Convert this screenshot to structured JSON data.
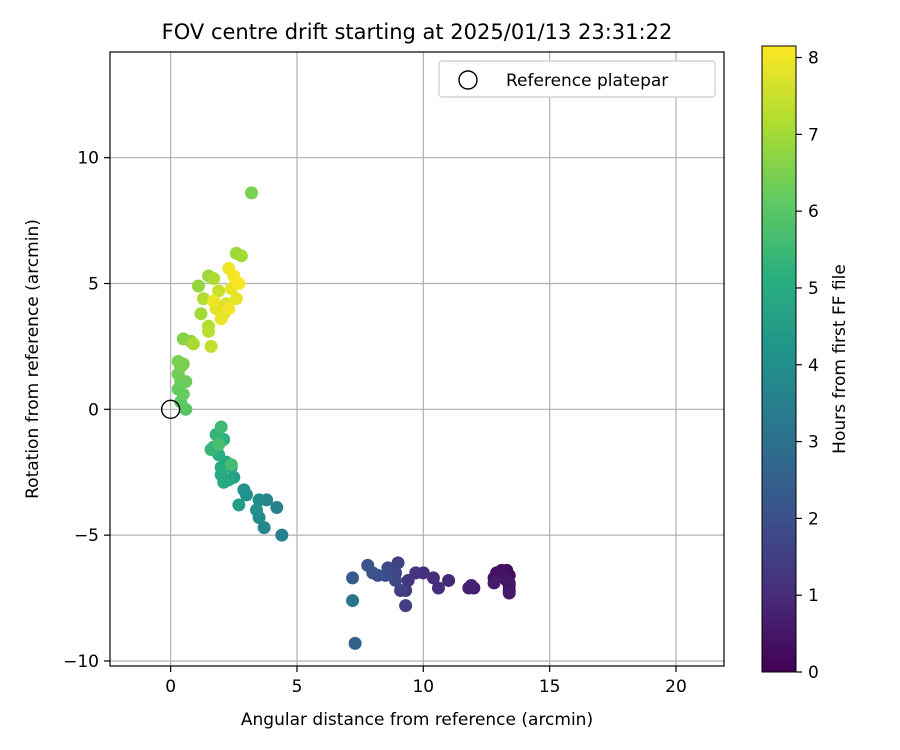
{
  "chart_data": {
    "type": "scatter",
    "title": "FOV centre drift starting at 2025/01/13 23:31:22",
    "xlabel": "Angular distance from reference (arcmin)",
    "ylabel": "Rotation from reference (arcmin)",
    "xlim": [
      -2.4,
      21.9
    ],
    "ylim": [
      -10.2,
      14.2
    ],
    "xticks": [
      0,
      5,
      10,
      15,
      20
    ],
    "yticks": [
      -10,
      -5,
      0,
      5,
      10
    ],
    "grid": true,
    "legend": {
      "position": "top-right",
      "entries": [
        "Reference platepar"
      ]
    },
    "reference_point": {
      "name": "Reference platepar",
      "x": 0,
      "y": 0,
      "marker": "open-circle"
    },
    "colorbar": {
      "label": "Hours from first FF file",
      "colormap": "viridis",
      "range": [
        0,
        8.15
      ],
      "ticks": [
        0,
        1,
        2,
        3,
        4,
        5,
        6,
        7,
        8
      ]
    },
    "points": [
      {
        "x": 13.4,
        "y": -7.2,
        "t": 0.05
      },
      {
        "x": 13.4,
        "y": -7.0,
        "t": 0.1
      },
      {
        "x": 13.3,
        "y": -6.8,
        "t": 0.15
      },
      {
        "x": 13.4,
        "y": -6.6,
        "t": 0.2
      },
      {
        "x": 13.3,
        "y": -6.4,
        "t": 0.25
      },
      {
        "x": 13.1,
        "y": -6.4,
        "t": 0.3
      },
      {
        "x": 12.8,
        "y": -6.7,
        "t": 0.35
      },
      {
        "x": 12.9,
        "y": -6.5,
        "t": 0.4
      },
      {
        "x": 13.2,
        "y": -6.6,
        "t": 0.45
      },
      {
        "x": 13.4,
        "y": -6.9,
        "t": 0.5
      },
      {
        "x": 13.4,
        "y": -7.3,
        "t": 0.55
      },
      {
        "x": 12.8,
        "y": -6.9,
        "t": 0.6
      },
      {
        "x": 12.0,
        "y": -7.1,
        "t": 0.65
      },
      {
        "x": 11.8,
        "y": -7.1,
        "t": 0.75
      },
      {
        "x": 11.9,
        "y": -7.0,
        "t": 0.8
      },
      {
        "x": 11.0,
        "y": -6.8,
        "t": 0.9
      },
      {
        "x": 10.6,
        "y": -7.1,
        "t": 1.0
      },
      {
        "x": 10.4,
        "y": -6.7,
        "t": 1.05
      },
      {
        "x": 10.0,
        "y": -6.5,
        "t": 1.1
      },
      {
        "x": 9.7,
        "y": -6.5,
        "t": 1.2
      },
      {
        "x": 9.4,
        "y": -6.8,
        "t": 1.3
      },
      {
        "x": 9.3,
        "y": -7.2,
        "t": 1.4
      },
      {
        "x": 9.3,
        "y": -7.8,
        "t": 1.5
      },
      {
        "x": 9.1,
        "y": -7.2,
        "t": 1.55
      },
      {
        "x": 9.0,
        "y": -6.1,
        "t": 1.6
      },
      {
        "x": 8.9,
        "y": -6.5,
        "t": 1.7
      },
      {
        "x": 8.9,
        "y": -6.8,
        "t": 1.75
      },
      {
        "x": 8.6,
        "y": -6.3,
        "t": 1.8
      },
      {
        "x": 8.5,
        "y": -6.6,
        "t": 1.9
      },
      {
        "x": 8.2,
        "y": -6.6,
        "t": 2.0
      },
      {
        "x": 8.0,
        "y": -6.5,
        "t": 2.05
      },
      {
        "x": 7.8,
        "y": -6.2,
        "t": 2.1
      },
      {
        "x": 7.2,
        "y": -6.7,
        "t": 2.3
      },
      {
        "x": 7.2,
        "y": -7.6,
        "t": 3.2
      },
      {
        "x": 7.3,
        "y": -9.3,
        "t": 2.5
      },
      {
        "x": 4.4,
        "y": -5.0,
        "t": 3.5
      },
      {
        "x": 4.2,
        "y": -3.9,
        "t": 3.6
      },
      {
        "x": 3.8,
        "y": -3.6,
        "t": 3.7
      },
      {
        "x": 3.7,
        "y": -4.7,
        "t": 3.75
      },
      {
        "x": 3.5,
        "y": -4.3,
        "t": 3.8
      },
      {
        "x": 3.5,
        "y": -3.6,
        "t": 3.9
      },
      {
        "x": 3.4,
        "y": -4.0,
        "t": 4.0
      },
      {
        "x": 3.0,
        "y": -3.4,
        "t": 4.05
      },
      {
        "x": 2.9,
        "y": -3.2,
        "t": 4.1
      },
      {
        "x": 2.7,
        "y": -3.8,
        "t": 4.5
      },
      {
        "x": 2.5,
        "y": -2.7,
        "t": 4.6
      },
      {
        "x": 2.4,
        "y": -2.3,
        "t": 4.7
      },
      {
        "x": 2.3,
        "y": -2.8,
        "t": 4.8
      },
      {
        "x": 2.2,
        "y": -2.1,
        "t": 4.85
      },
      {
        "x": 2.0,
        "y": -2.6,
        "t": 4.9
      },
      {
        "x": 2.1,
        "y": -2.9,
        "t": 4.95
      },
      {
        "x": 2.0,
        "y": -2.3,
        "t": 5.0
      },
      {
        "x": 1.9,
        "y": -1.8,
        "t": 5.1
      },
      {
        "x": 2.1,
        "y": -1.2,
        "t": 5.2
      },
      {
        "x": 1.8,
        "y": -1.0,
        "t": 5.3
      },
      {
        "x": 1.7,
        "y": -1.5,
        "t": 5.35
      },
      {
        "x": 1.6,
        "y": -1.6,
        "t": 5.4
      },
      {
        "x": 2.0,
        "y": -0.7,
        "t": 5.5
      },
      {
        "x": 2.4,
        "y": -2.2,
        "t": 5.6
      },
      {
        "x": 1.9,
        "y": -1.4,
        "t": 5.7
      },
      {
        "x": 0.6,
        "y": 0.0,
        "t": 6.0
      },
      {
        "x": 0.4,
        "y": 0.3,
        "t": 6.1
      },
      {
        "x": 0.3,
        "y": 0.8,
        "t": 6.15
      },
      {
        "x": 0.5,
        "y": 0.6,
        "t": 6.2
      },
      {
        "x": 0.4,
        "y": 1.1,
        "t": 6.25
      },
      {
        "x": 0.6,
        "y": 1.1,
        "t": 6.3
      },
      {
        "x": 0.3,
        "y": 1.4,
        "t": 6.35
      },
      {
        "x": 0.4,
        "y": 1.7,
        "t": 6.4
      },
      {
        "x": 0.3,
        "y": 1.9,
        "t": 6.45
      },
      {
        "x": 0.5,
        "y": 1.8,
        "t": 6.5
      },
      {
        "x": 0.5,
        "y": 2.8,
        "t": 6.6
      },
      {
        "x": 0.8,
        "y": 2.7,
        "t": 6.7
      },
      {
        "x": 3.2,
        "y": 8.6,
        "t": 6.5
      },
      {
        "x": 2.6,
        "y": 6.2,
        "t": 6.9
      },
      {
        "x": 2.8,
        "y": 6.1,
        "t": 7.0
      },
      {
        "x": 1.2,
        "y": 3.8,
        "t": 7.0
      },
      {
        "x": 1.1,
        "y": 4.9,
        "t": 6.8
      },
      {
        "x": 1.5,
        "y": 5.3,
        "t": 6.9
      },
      {
        "x": 1.7,
        "y": 5.2,
        "t": 7.1
      },
      {
        "x": 1.3,
        "y": 4.4,
        "t": 7.2
      },
      {
        "x": 1.5,
        "y": 3.3,
        "t": 7.2
      },
      {
        "x": 1.5,
        "y": 3.1,
        "t": 7.3
      },
      {
        "x": 1.6,
        "y": 2.5,
        "t": 7.4
      },
      {
        "x": 0.9,
        "y": 2.6,
        "t": 7.1
      },
      {
        "x": 1.9,
        "y": 4.7,
        "t": 7.5
      },
      {
        "x": 2.1,
        "y": 3.8,
        "t": 7.6
      },
      {
        "x": 2.2,
        "y": 4.2,
        "t": 7.7
      },
      {
        "x": 1.8,
        "y": 4.0,
        "t": 7.8
      },
      {
        "x": 2.4,
        "y": 4.8,
        "t": 7.9
      },
      {
        "x": 2.6,
        "y": 4.4,
        "t": 7.85
      },
      {
        "x": 2.3,
        "y": 5.6,
        "t": 8.0
      },
      {
        "x": 2.5,
        "y": 5.3,
        "t": 8.05
      },
      {
        "x": 2.7,
        "y": 5.0,
        "t": 8.1
      },
      {
        "x": 2.0,
        "y": 3.6,
        "t": 7.9
      },
      {
        "x": 1.7,
        "y": 4.3,
        "t": 7.95
      },
      {
        "x": 2.3,
        "y": 4.0,
        "t": 8.0
      }
    ]
  }
}
